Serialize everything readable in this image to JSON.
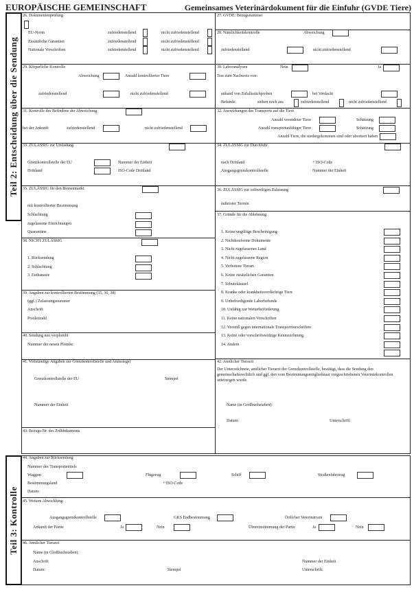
{
  "header": {
    "left": "EUROPÄISCHE GEMEINSCHAFT",
    "right": "Gemeinsames Veterinärdokument für die Einfuhr (GVDE Tiere)"
  },
  "part2": {
    "label": "Teil 2: Entscheidung über die Sendung"
  },
  "part3": {
    "label": "Teil 3: Kontrolle"
  },
  "s26": {
    "title": "26. Dokumentenprüfung",
    "rows": [
      "EU-Norm",
      "Zusätzliche Garantien",
      "Nationale Vorschriften"
    ],
    "ok": "zufriedenstellend",
    "nok": "nicht zufriedenstellend"
  },
  "s27": {
    "title": "27. GVDE: Bezugsnummer"
  },
  "s28": {
    "title": "28. Nämlichkeitskontrolle",
    "deviation": "Abweichung",
    "ok": "zufriedenstellend",
    "nok": "nicht zufriedenstellend"
  },
  "s29": {
    "title": "29. Körperliche Kontrolle",
    "deviation": "Abweichung",
    "count": "Anzahl kontrollierter Tiere",
    "ok": "zufriedenstellend",
    "nok": "nicht zufriedenstellend"
  },
  "s30": {
    "title": "30. Laboranalysen",
    "no": "Nein",
    "yes": "Ja",
    "test": "Test zum Nachweis von:",
    "random": "anhand von Zufallsstichproben",
    "suspicion": "bei Verdacht",
    "results": "Befunde:",
    "pending": "stehen noch aus",
    "ok": "zufriedenstellend",
    "nok": "nicht zufriedenstellend"
  },
  "s31": {
    "title": "31. Kontrolle des Befindens der Abweichung",
    "arrival": "bei der Ankunft",
    "ok": "zufriedenstellend",
    "nok": "nicht zufriedenstellend"
  },
  "s32": {
    "title": "32. Auswirkungen des Transports auf die Tiere",
    "dead": "Anzahl verendeter Tiere",
    "unfit": "Anzahl transportunfähiger Tiere",
    "estimate": "Schätzung",
    "born": "Anzahl Tiere, die niedergekommen sind oder abortiert haben"
  },
  "s33": {
    "title": "33. ZULÄSSIG zur Umladung",
    "bip": "Grenzkontrollstelle der EU",
    "unit": "Nummer der Einheit",
    "third": "Drittland",
    "iso": "ISO-Code Drittland"
  },
  "s34": {
    "title": "34. ZULÄSSIG zur Durchfuhr",
    "to_third": "nach Drittland",
    "iso": "+ ISO-Code",
    "exit": "Ausgangsgrenzkontrollstelle",
    "unit": "Nummer der Einheit"
  },
  "s35": {
    "title": "35. ZULÄSSIG für den Binnenmarkt",
    "controlled": "mit kontrollierter Bestimmung",
    "items": [
      "Schlachtung",
      "zugelassene Einrichtungen",
      "Quarantäne"
    ]
  },
  "s36": {
    "title": "36. ZULÄSSIG zur zeitweiligen Zulassung",
    "deadline": "äußerster Termin"
  },
  "s37": {
    "title": "37. Gründe für die Ablehnung",
    "items": [
      "1. Keine/ungültige Bescheinigung",
      "2. Nichtkonforme Dokumente",
      "3. Nicht zugelassenes Land",
      "4. Nicht zugelassene Region",
      "5. Verbotene Tierart",
      "6. Keine zusätzlichen Garantien",
      "7. Schutzklausel",
      "8. Kranke oder krankheitsverdächtige Tiere",
      "9. Unbefriedigende Laborbefunde",
      "10. Unfähig zur Weiterbeförderung",
      "11. Keine nationalen Vorschriften",
      "12. Verstoß gegen internationale Transportvorschriften",
      "13. Keine oder vorschriftswidrige Kennzeichnung",
      "14. Andere"
    ]
  },
  "s38": {
    "title": "38. NICHT ZULÄSSIG",
    "items": [
      "1. Rücksendung",
      "2. Schlachtung",
      "3. Euthanasie"
    ]
  },
  "s39": {
    "title": "39. Angaben zur kontrollierten Bestimmung (35, 36, 38)",
    "approval": "(ggf.) Zulassungsnummer",
    "address": "Anschrift",
    "zip": "Postleitzahl"
  },
  "s40": {
    "title": "40. Sendung neu verplombt",
    "seal": "Nummer der neuen Plombe"
  },
  "s41": {
    "title": "41. Vollständige Angaben zur Grenzkontrollstelle und Amtssiegel",
    "bip": "Grenzkontrollstelle der EU",
    "stamp": "Stempel",
    "unit": "Nummer der Einheit"
  },
  "s42": {
    "title": "42. Amtlicher Tierarzt",
    "text": "Der Unterzeichnete, amtlicher Tierarzt der Grenzkontrollstelle, bestätigt, dass die Sendung den gemeinschaftsrechtlich und ggf. den vom Bestimmungsmitgliedstaat vorgeschriebenen Veterinärkontrollen  unterzogen wurde.",
    "name": "Name (in Großbuchstaben):",
    "date": "Datum:",
    "signature": "Unterschrift:"
  },
  "s43": {
    "title": "43. Bezugs-Nr. des Zolldokuments"
  },
  "s44": {
    "title": "44. Angaben zur Rücksendung",
    "transport": "Nummer des Transportmittels",
    "wagon": "Waggon",
    "plane": "Flugzeug",
    "ship": "Schiff",
    "truck": "Straßenfahrzeug",
    "country": "Bestimmungsland",
    "iso": "+ ISO-Code",
    "date": "Datum:"
  },
  "s45": {
    "title": "45. Weitere Abwicklung",
    "exit": "Ausgangsgrenzkontrollstelle",
    "gks": "GKS Endbestimmung",
    "local": "Örtlicher Veterinärrant",
    "arrival": "Ankunft der Partie",
    "match": "Übereinstimmung der Partie",
    "yes": "Ja",
    "no": "Nein"
  },
  "s46": {
    "title": "46. Amtlicher Tierarzt",
    "name": "Name (in Großbuchstaben):",
    "address": "Anschrift",
    "unit": "Nummer der Einheit",
    "date": "Datum:",
    "stamp": "Stempel",
    "signature": "Unterschrift:"
  }
}
